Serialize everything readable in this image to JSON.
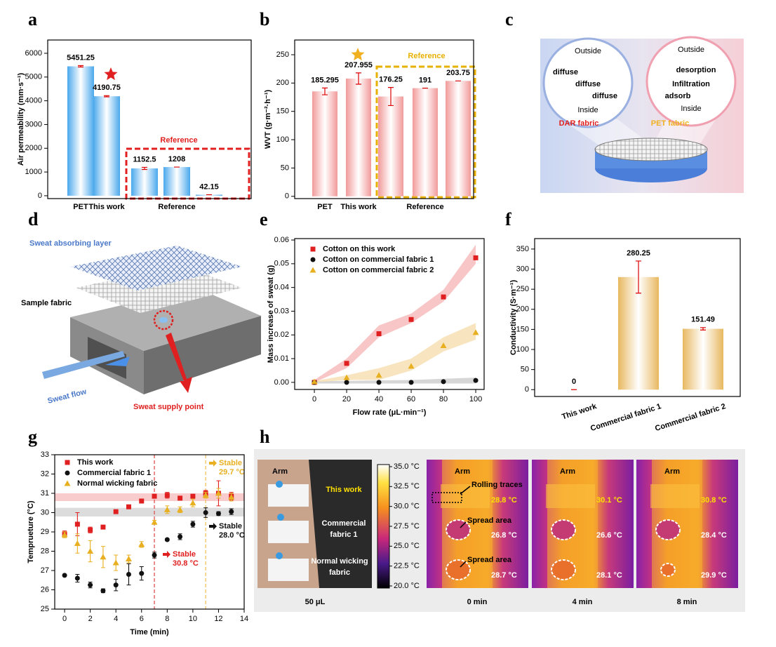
{
  "chart_data": [
    {
      "type": "bar",
      "panel_label": "a",
      "ylabel": "Air permeability (mm·s⁻¹)",
      "categories": [
        "PET",
        "This work",
        null,
        "Reference",
        null
      ],
      "values": [
        5451.25,
        4190.75,
        1152.5,
        1208,
        42.15
      ],
      "errors": [
        30,
        25,
        45,
        0,
        0
      ],
      "color": "#4aa8ec",
      "ylim": [
        -120,
        6560
      ],
      "yticks": [
        0,
        1000,
        2000,
        3000,
        4000,
        5000,
        6000
      ],
      "annotation": "Reference",
      "annotation_color": "#e02020",
      "star_color": "#e02020"
    },
    {
      "type": "bar",
      "panel_label": "b",
      "ylabel": "WVT (g·m⁻²·h⁻¹)",
      "categories": [
        "PET",
        "This work",
        null,
        "Reference",
        null
      ],
      "values": [
        185.295,
        207.955,
        176.25,
        191,
        203.75
      ],
      "errors": [
        6,
        10,
        16,
        0,
        0
      ],
      "color": "#f29a9a",
      "ylim": [
        -4,
        276
      ],
      "yticks": [
        0,
        50,
        100,
        150,
        200,
        250
      ],
      "annotation": "Reference",
      "annotation_color": "#e8b000",
      "star_color": "#f0b020"
    },
    {
      "type": "scatter",
      "panel_label": "e",
      "xlabel": "Flow rate (μL·min⁻¹)",
      "ylabel": "Mass increase of sweat (g)",
      "x": [
        0,
        20,
        40,
        60,
        80,
        100
      ],
      "xlim": [
        -12.2,
        105.2
      ],
      "xticks": [
        0,
        20,
        40,
        60,
        80,
        100
      ],
      "ylim": [
        -0.003,
        0.0606
      ],
      "yticks": [
        {
          "value": 0,
          "label": "0.00"
        },
        {
          "value": 0.01,
          "label": "0.01"
        },
        {
          "value": 0.02,
          "label": "0.02"
        },
        {
          "value": 0.03,
          "label": "0.03"
        },
        {
          "value": 0.04,
          "label": "0.04"
        },
        {
          "value": 0.05,
          "label": "0.05"
        },
        {
          "value": 0.06,
          "label": "0.06"
        }
      ],
      "legend": "upper left",
      "series": [
        {
          "name": "Cotton on this work",
          "color": "#e02020",
          "marker": "square",
          "band_color": "#f6b8b8",
          "values": [
            0,
            0.008,
            0.0205,
            0.0265,
            0.036,
            0.0525
          ],
          "lower": [
            0,
            0.006,
            0.019,
            0.025,
            0.034,
            0.05
          ],
          "upper": [
            0.001,
            0.01,
            0.024,
            0.029,
            0.039,
            0.058
          ]
        },
        {
          "name": "Cotton on commercial fabric 1",
          "color": "#111111",
          "marker": "circle",
          "band_color": "#cccccc",
          "values": [
            0,
            0,
            0,
            0,
            0.0003,
            0.0008
          ],
          "lower": [
            -0.0005,
            -0.0005,
            -0.0005,
            -0.0005,
            -0.0005,
            -0.0005
          ],
          "upper": [
            0.0005,
            0.0006,
            0.0008,
            0.001,
            0.0015,
            0.002
          ]
        },
        {
          "name": "Cotton on commercial fabric 2",
          "color": "#e8b020",
          "marker": "triangle",
          "band_color": "#f6deb0",
          "values": [
            0.0003,
            0.002,
            0.003,
            0.0068,
            0.0155,
            0.021
          ],
          "lower": [
            0,
            0.001,
            0.001,
            0.005,
            0.013,
            0.018
          ],
          "upper": [
            0.0005,
            0.003,
            0.006,
            0.01,
            0.019,
            0.025
          ]
        }
      ]
    },
    {
      "type": "bar",
      "panel_label": "f",
      "ylabel": "Conductivity (S·m⁻¹)",
      "categories": [
        "This work",
        "Commercial fabric 1",
        "Commercial fabric 2"
      ],
      "values": [
        0,
        280.25,
        151.49
      ],
      "errors": [
        0,
        40,
        3
      ],
      "color": "#e8b860",
      "ylim": [
        -17,
        376
      ],
      "yticks": [
        0,
        50,
        100,
        150,
        200,
        250,
        300,
        350
      ]
    },
    {
      "type": "scatter",
      "panel_label": "g",
      "xlabel": "Time (min)",
      "ylabel": "Temprueture (°C)",
      "x": [
        0,
        1,
        2,
        3,
        4,
        5,
        6,
        7,
        8,
        9,
        10,
        11,
        12,
        13
      ],
      "xlim": [
        -0.77,
        14
      ],
      "xticks": [
        0,
        2,
        4,
        6,
        8,
        10,
        12,
        14
      ],
      "ylim": [
        25,
        33
      ],
      "yticks": [
        25,
        26,
        27,
        28,
        29,
        30,
        31,
        32,
        33
      ],
      "legend": "upper left",
      "series": [
        {
          "name": "This work",
          "color": "#e02020",
          "marker": "square",
          "values": [
            28.9,
            29.4,
            29.1,
            29.25,
            30.05,
            30.3,
            30.6,
            30.85,
            30.9,
            30.75,
            30.85,
            31.0,
            31.0,
            30.85
          ],
          "errors": [
            0.15,
            0.6,
            0.15,
            0.05,
            0.05,
            0.1,
            0.05,
            0.05,
            0.15,
            0.05,
            0.05,
            0.15,
            0.65,
            0.2
          ]
        },
        {
          "name": "Commercial fabric 1",
          "color": "#111111",
          "marker": "circle",
          "values": [
            26.75,
            26.6,
            26.25,
            25.95,
            26.25,
            26.8,
            26.85,
            27.8,
            28.6,
            28.75,
            29.4,
            30.0,
            29.95,
            30.05
          ],
          "errors": [
            0.05,
            0.2,
            0.15,
            0.1,
            0.3,
            0.55,
            0.35,
            0.15,
            0.05,
            0.15,
            0.15,
            0.25,
            0.1,
            0.15
          ]
        },
        {
          "name": "Normal wicking fabric",
          "color": "#e8b020",
          "marker": "triangle",
          "values": [
            28.85,
            28.4,
            28.0,
            27.7,
            27.4,
            27.6,
            28.35,
            29.5,
            30.15,
            30.15,
            30.5,
            30.9,
            31.0,
            30.8
          ],
          "errors": [
            0.15,
            0.5,
            0.55,
            0.55,
            0.4,
            0.2,
            0.15,
            0.1,
            0.2,
            0.15,
            0.2,
            0.15,
            0.25,
            0.2
          ]
        }
      ],
      "bands": [
        {
          "range": [
            30.6,
            31.0
          ],
          "color": "#f8cccc"
        },
        {
          "range": [
            29.8,
            30.25
          ],
          "color": "#dcdcdc"
        }
      ],
      "vlines": [
        {
          "x": 7,
          "color": "#e05050"
        },
        {
          "x": 11,
          "color": "#f0c060"
        }
      ],
      "annotations": [
        {
          "text": "Stable",
          "reading": "30.8 °C",
          "color": "#e02020"
        },
        {
          "text": "Stable",
          "reading": "28.0 °C",
          "color": "#111111"
        },
        {
          "text": "Stable",
          "reading": "29.7 °C",
          "color": "#e8b020"
        }
      ]
    }
  ],
  "panel_c": {
    "label": "c",
    "left": {
      "outside": "Outside",
      "terms": [
        "diffuse",
        "diffuse",
        "diffuse"
      ],
      "inside": "Inside",
      "fabric": "DAR fabric"
    },
    "right": {
      "outside": "Outside",
      "terms": [
        "desorption",
        "Infiltration",
        "adsorb"
      ],
      "inside": "Inside",
      "fabric": "PET fabric"
    }
  },
  "panel_d": {
    "label": "d",
    "absorbing": "Sweat absorbing layer",
    "sample": "Sample fabric",
    "flow": "Sweat flow",
    "supply": "Sweat supply point"
  },
  "panel_h": {
    "label": "h",
    "photo": {
      "arm": "Arm",
      "labels": [
        [
          "This work"
        ],
        [
          "Commercial",
          "fabric 1"
        ],
        [
          "Normal wicking",
          "fabric"
        ]
      ],
      "caption": "50 μL"
    },
    "colorbar": {
      "lim": [
        20,
        35
      ],
      "ticks": [
        {
          "value": 35,
          "label": "35.0 °C"
        },
        {
          "value": 32.5,
          "label": "32.5 °C"
        },
        {
          "value": 30,
          "label": "30.0 °C"
        },
        {
          "value": 27.5,
          "label": "27.5 °C"
        },
        {
          "value": 25,
          "label": "25.0 °C"
        },
        {
          "value": 22.5,
          "label": "22.5 °C"
        },
        {
          "value": 20,
          "label": "20.0 °C"
        }
      ]
    },
    "frames": [
      {
        "arm": "Arm",
        "notes": [
          "Rolling traces",
          "Spread area",
          "Spread area"
        ],
        "temps": [
          "28.8 °C",
          "26.8 °C",
          "28.7 °C"
        ],
        "caption": "0 min"
      },
      {
        "arm": "Arm",
        "temps": [
          "30.1 °C",
          "26.6 °C",
          "28.1 °C"
        ],
        "caption": "4 min"
      },
      {
        "arm": "Arm",
        "temps": [
          "30.8 °C",
          "28.4 °C",
          "29.9 °C"
        ],
        "caption": "8 min"
      }
    ]
  }
}
